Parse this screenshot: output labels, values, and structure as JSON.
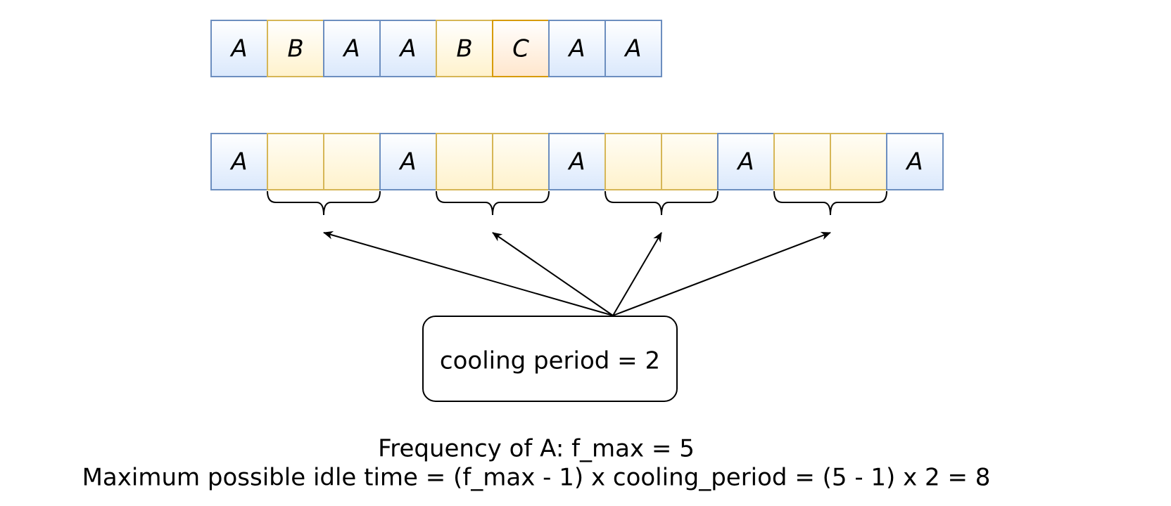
{
  "top_sequence": [
    "A",
    "B",
    "A",
    "A",
    "B",
    "C",
    "A",
    "A"
  ],
  "schedule_sequence": [
    "A",
    "",
    "",
    "A",
    "",
    "",
    "A",
    "",
    "",
    "A",
    "",
    "",
    "A"
  ],
  "cooling_box_label": "cooling period = 2",
  "caption": {
    "line1": "Frequency of A: f_max = 5",
    "line2": "Maximum possible idle time = (f_max - 1) x cooling_period = (5 - 1) x 2 = 8"
  },
  "colors": {
    "A": {
      "fill": "#dae8fc",
      "stroke": "#6c8ebf"
    },
    "B": {
      "fill": "#fff2cc",
      "stroke": "#d6b656"
    },
    "C": {
      "fill": "#ffe6cc",
      "stroke": "#d79b00"
    },
    "idle": {
      "fill": "#fff2cc",
      "stroke": "#d6b656"
    }
  }
}
